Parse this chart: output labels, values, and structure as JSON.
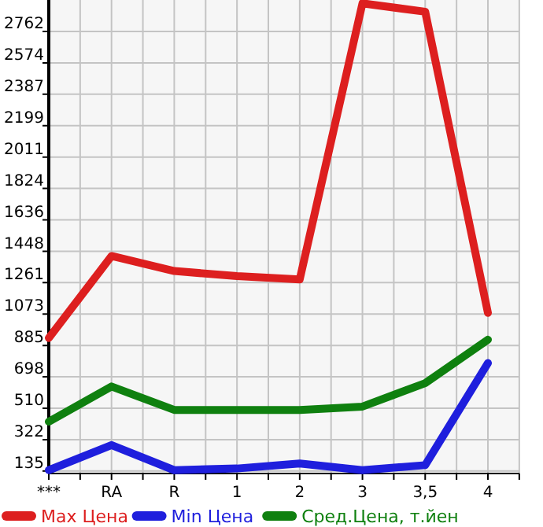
{
  "chart_data": {
    "type": "line",
    "categories": [
      "***",
      "RA",
      "R",
      "1",
      "2",
      "3",
      "3,5",
      "4"
    ],
    "series": [
      {
        "name": "Max Цена",
        "color": "#dd1f1f",
        "values": [
          930,
          1420,
          1330,
          1300,
          1280,
          2930,
          2880,
          1080
        ]
      },
      {
        "name": "Min Цена",
        "color": "#1f1fdd",
        "values": [
          140,
          290,
          140,
          150,
          180,
          140,
          170,
          780
        ]
      },
      {
        "name": "Сред.Цена, т.йен",
        "color": "#0f800f",
        "values": [
          430,
          640,
          500,
          500,
          500,
          520,
          660,
          920
        ]
      }
    ],
    "ylim": [
      120,
      2950
    ],
    "yticks": [
      135,
      {
        "value": 322,
        "label": "322"
      },
      510,
      698,
      885,
      1073,
      1261,
      1448,
      1636,
      1824,
      2011,
      2199,
      2387,
      2574,
      2762
    ],
    "grid": true,
    "legend": "bottom",
    "marker": "none",
    "line_style": "solid"
  }
}
